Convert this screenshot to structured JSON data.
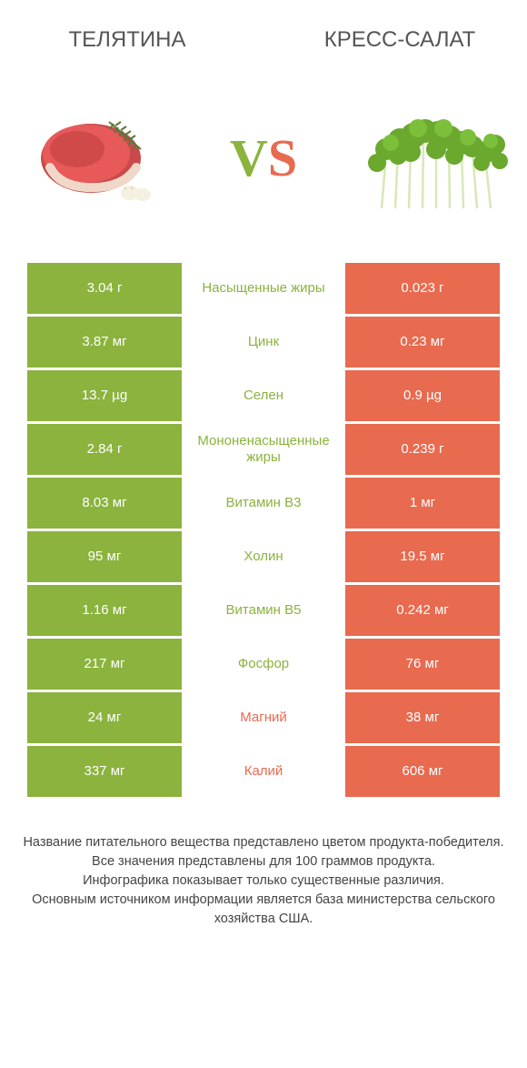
{
  "colors": {
    "green": "#8bb33d",
    "orange": "#e86a4f",
    "mid_green_text": "#8bb33d",
    "mid_orange_text": "#e86a4f",
    "green_dark": "#7aa22f",
    "orange_dark": "#d85a40",
    "background": "#ffffff"
  },
  "header": {
    "left_title": "ТЕЛЯТИНА",
    "right_title": "КРЕСС-САЛАТ"
  },
  "vs": {
    "v": "V",
    "s": "S"
  },
  "rows": [
    {
      "left": "3.04 г",
      "mid": "Насыщенные жиры",
      "right": "0.023 г",
      "winner": "left"
    },
    {
      "left": "3.87 мг",
      "mid": "Цинк",
      "right": "0.23 мг",
      "winner": "left"
    },
    {
      "left": "13.7 µg",
      "mid": "Селен",
      "right": "0.9 µg",
      "winner": "left"
    },
    {
      "left": "2.84 г",
      "mid": "Мононенасыщенные жиры",
      "right": "0.239 г",
      "winner": "left"
    },
    {
      "left": "8.03 мг",
      "mid": "Витамин B3",
      "right": "1 мг",
      "winner": "left"
    },
    {
      "left": "95 мг",
      "mid": "Холин",
      "right": "19.5 мг",
      "winner": "left"
    },
    {
      "left": "1.16 мг",
      "mid": "Витамин B5",
      "right": "0.242 мг",
      "winner": "left"
    },
    {
      "left": "217 мг",
      "mid": "Фосфор",
      "right": "76 мг",
      "winner": "left"
    },
    {
      "left": "24 мг",
      "mid": "Магний",
      "right": "38 мг",
      "winner": "right"
    },
    {
      "left": "337 мг",
      "mid": "Калий",
      "right": "606 мг",
      "winner": "right"
    }
  ],
  "footer": {
    "line1": "Название питательного вещества представлено цветом продукта-победителя.",
    "line2": "Все значения представлены для 100 граммов продукта.",
    "line3": "Инфографика показывает только существенные различия.",
    "line4": "Основным источником информации является база министерства сельского хозяйства США."
  }
}
